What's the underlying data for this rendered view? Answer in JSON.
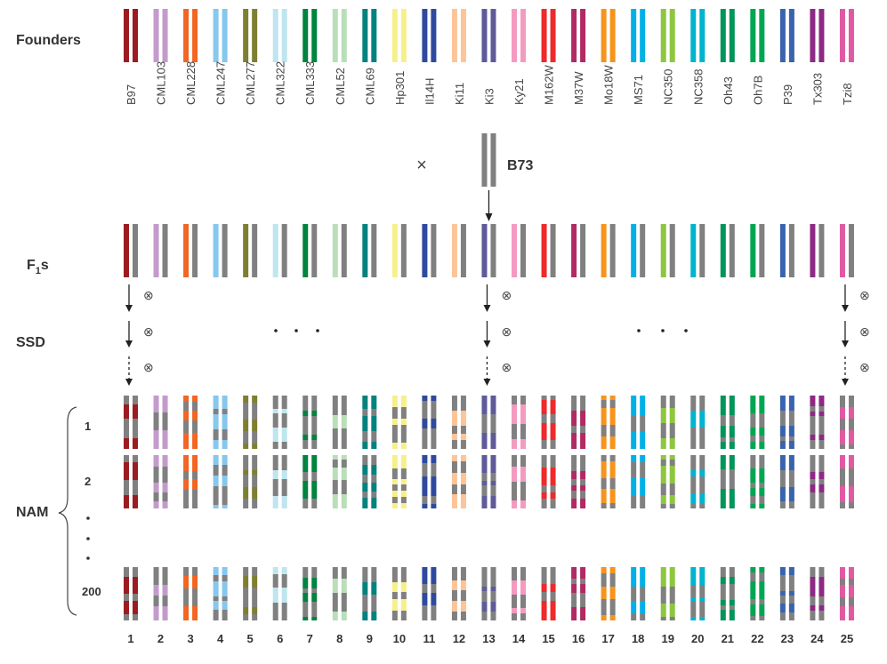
{
  "labels": {
    "founders": "Founders",
    "f1_main": "F",
    "f1_sub": "1",
    "f1_suffix": "s",
    "ssd": "SSD",
    "nam": "NAM",
    "b73": "B73",
    "cross": "×",
    "self": "⊗",
    "ellipsis_dot": "•"
  },
  "common_parent_color": "#808080",
  "founders": [
    {
      "name": "B97",
      "color": "#9b1c20"
    },
    {
      "name": "CML103",
      "color": "#c39bcb"
    },
    {
      "name": "CML228",
      "color": "#f26522"
    },
    {
      "name": "CML247",
      "color": "#86c7ee"
    },
    {
      "name": "CML277",
      "color": "#7f7f30"
    },
    {
      "name": "CML322",
      "color": "#bfe5ee"
    },
    {
      "name": "CML333",
      "color": "#00843f"
    },
    {
      "name": "CML52",
      "color": "#b9dfb9"
    },
    {
      "name": "CML69",
      "color": "#00827f"
    },
    {
      "name": "Hp301",
      "color": "#f7f08a"
    },
    {
      "name": "Il14H",
      "color": "#2e4a9e"
    },
    {
      "name": "Ki11",
      "color": "#fdc498"
    },
    {
      "name": "Ki3",
      "color": "#5f5b9a"
    },
    {
      "name": "Ky21",
      "color": "#f49ac1"
    },
    {
      "name": "M162W",
      "color": "#ee2a2b"
    },
    {
      "name": "M37W",
      "color": "#b12a63"
    },
    {
      "name": "Mo18W",
      "color": "#f7941d"
    },
    {
      "name": "MS71",
      "color": "#00b0e6"
    },
    {
      "name": "NC350",
      "color": "#8dc63f"
    },
    {
      "name": "NC358",
      "color": "#00b4d0"
    },
    {
      "name": "Oh43",
      "color": "#00955a"
    },
    {
      "name": "Oh7B",
      "color": "#00a651"
    },
    {
      "name": "P39",
      "color": "#3a63ad"
    },
    {
      "name": "Tx303",
      "color": "#8e2a85"
    },
    {
      "name": "Tzi8",
      "color": "#e05aa1"
    }
  ],
  "nam_rows": [
    "1",
    "2",
    "200"
  ],
  "family_numbers": [
    "1",
    "2",
    "3",
    "4",
    "5",
    "6",
    "7",
    "8",
    "9",
    "10",
    "11",
    "12",
    "13",
    "14",
    "15",
    "16",
    "17",
    "18",
    "19",
    "20",
    "21",
    "22",
    "23",
    "24",
    "25"
  ],
  "selfing_families": [
    1,
    13,
    25
  ]
}
